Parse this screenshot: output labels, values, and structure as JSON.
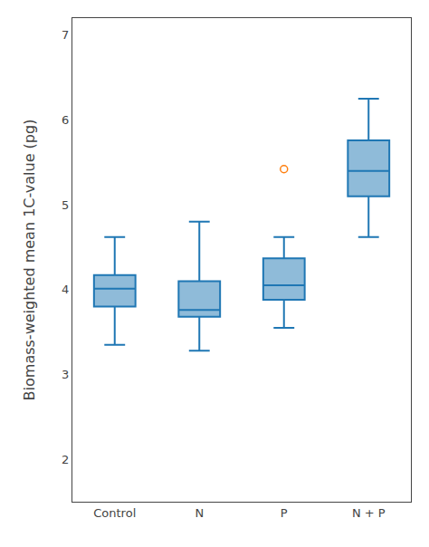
{
  "chart_data": {
    "type": "box",
    "categories": [
      "Control",
      "N",
      "P",
      "N + P"
    ],
    "boxes": [
      {
        "q1": 3.8,
        "median": 4.01,
        "q3": 4.17,
        "whisker_low": 3.35,
        "whisker_high": 4.62,
        "fliers": []
      },
      {
        "q1": 3.68,
        "median": 3.76,
        "q3": 4.1,
        "whisker_low": 3.28,
        "whisker_high": 4.8,
        "fliers": []
      },
      {
        "q1": 3.88,
        "median": 4.05,
        "q3": 4.37,
        "whisker_low": 3.55,
        "whisker_high": 4.62,
        "fliers": [
          5.42
        ]
      },
      {
        "q1": 5.1,
        "median": 5.4,
        "q3": 5.76,
        "whisker_low": 4.62,
        "whisker_high": 6.25,
        "fliers": []
      }
    ],
    "ylabel": "Biomass-weighted mean 1C-value (pg)",
    "ylim": [
      1.5,
      7.2
    ],
    "yticks": [
      2,
      3,
      4,
      5,
      6,
      7
    ],
    "marker": "circle-open",
    "grid": false
  }
}
